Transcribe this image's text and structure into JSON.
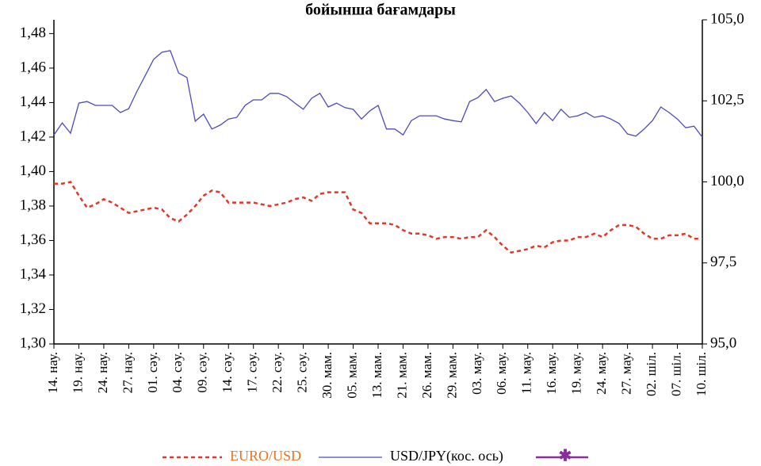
{
  "chart_data": {
    "type": "line",
    "title": "бойынша бағамдары",
    "categories": [
      "14. нау.",
      null,
      null,
      "19. нау.",
      null,
      null,
      "24. нау.",
      null,
      null,
      "27. нау.",
      null,
      null,
      "01. сәу.",
      null,
      null,
      "04. сәу.",
      null,
      null,
      "09. сәу.",
      null,
      null,
      "14. сәу.",
      null,
      null,
      "17. сәу.",
      null,
      null,
      "22. сәу.",
      null,
      null,
      "25. сәу.",
      null,
      null,
      "30. мам.",
      null,
      null,
      "05. мам.",
      null,
      null,
      "13. мам.",
      null,
      null,
      "21. мам.",
      null,
      null,
      "26. мам.",
      null,
      null,
      "29. мам.",
      null,
      null,
      "03. мау.",
      null,
      null,
      "06. мау.",
      null,
      null,
      "11. мау.",
      null,
      null,
      "16. мау.",
      null,
      null,
      "19. мау.",
      null,
      null,
      "24. мау.",
      null,
      null,
      "27. мау.",
      null,
      null,
      "02. шіл.",
      null,
      null,
      "07. шіл.",
      null,
      null,
      "10. шіл."
    ],
    "series": [
      {
        "name": "EURO/USD",
        "color": "#e2382a",
        "values": [
          1.393,
          1.393,
          1.394,
          1.386,
          1.379,
          1.381,
          1.384,
          1.382,
          1.379,
          1.376,
          1.377,
          1.378,
          1.379,
          1.378,
          1.373,
          1.371,
          1.375,
          1.38,
          1.386,
          1.389,
          1.388,
          1.382,
          1.382,
          1.382,
          1.382,
          1.381,
          1.38,
          1.381,
          1.382,
          1.384,
          1.385,
          1.383,
          1.387,
          1.388,
          1.388,
          1.388,
          1.378,
          1.376,
          1.37,
          1.37,
          1.37,
          1.369,
          1.366,
          1.364,
          1.364,
          1.363,
          1.361,
          1.362,
          1.362,
          1.361,
          1.362,
          1.362,
          1.366,
          1.362,
          1.357,
          1.353,
          1.354,
          1.355,
          1.357,
          1.356,
          1.359,
          1.36,
          1.36,
          1.362,
          1.362,
          1.364,
          1.362,
          1.366,
          1.369,
          1.369,
          1.368,
          1.364,
          1.361,
          1.361,
          1.363,
          1.363,
          1.364,
          1.361,
          1.361
        ]
      },
      {
        "name": "USD/JPY(кос. ось)",
        "color": "#4b4bbf",
        "axis": "y2",
        "values": [
          101.45,
          101.82,
          101.5,
          102.43,
          102.48,
          102.36,
          102.36,
          102.36,
          102.14,
          102.26,
          102.8,
          103.29,
          103.78,
          104.0,
          104.05,
          103.36,
          103.22,
          101.87,
          102.09,
          101.63,
          101.75,
          101.94,
          101.99,
          102.36,
          102.53,
          102.53,
          102.73,
          102.73,
          102.63,
          102.43,
          102.24,
          102.58,
          102.73,
          102.31,
          102.43,
          102.29,
          102.24,
          101.94,
          102.19,
          102.36,
          101.63,
          101.63,
          101.45,
          101.89,
          102.04,
          102.04,
          102.04,
          101.94,
          101.89,
          101.85,
          102.48,
          102.6,
          102.85,
          102.48,
          102.58,
          102.65,
          102.43,
          102.14,
          101.8,
          102.14,
          101.89,
          102.24,
          101.99,
          102.04,
          102.14,
          101.99,
          102.04,
          101.94,
          101.8,
          101.48,
          101.41,
          101.63,
          101.89,
          102.31,
          102.14,
          101.94,
          101.67,
          101.72,
          101.38
        ]
      }
    ],
    "ylim": [
      1.3,
      1.488
    ],
    "yticks": [
      {
        "value": 1.3,
        "label": "1,30"
      },
      {
        "value": 1.32,
        "label": "1,32"
      },
      {
        "value": 1.34,
        "label": "1,34"
      },
      {
        "value": 1.36,
        "label": "1,36"
      },
      {
        "value": 1.38,
        "label": "1,38"
      },
      {
        "value": 1.4,
        "label": "1,40"
      },
      {
        "value": 1.42,
        "label": "1,42"
      },
      {
        "value": 1.44,
        "label": "1,44"
      },
      {
        "value": 1.46,
        "label": "1,46"
      },
      {
        "value": 1.48,
        "label": "1,48"
      }
    ],
    "y2lim": [
      95,
      105
    ],
    "y2ticks": [
      {
        "value": 95,
        "label": "95,0"
      },
      {
        "value": 97.5,
        "label": "97,5"
      },
      {
        "value": 100,
        "label": "100,0"
      },
      {
        "value": 102.5,
        "label": "102,5"
      },
      {
        "value": 105,
        "label": "105,0"
      }
    ]
  }
}
